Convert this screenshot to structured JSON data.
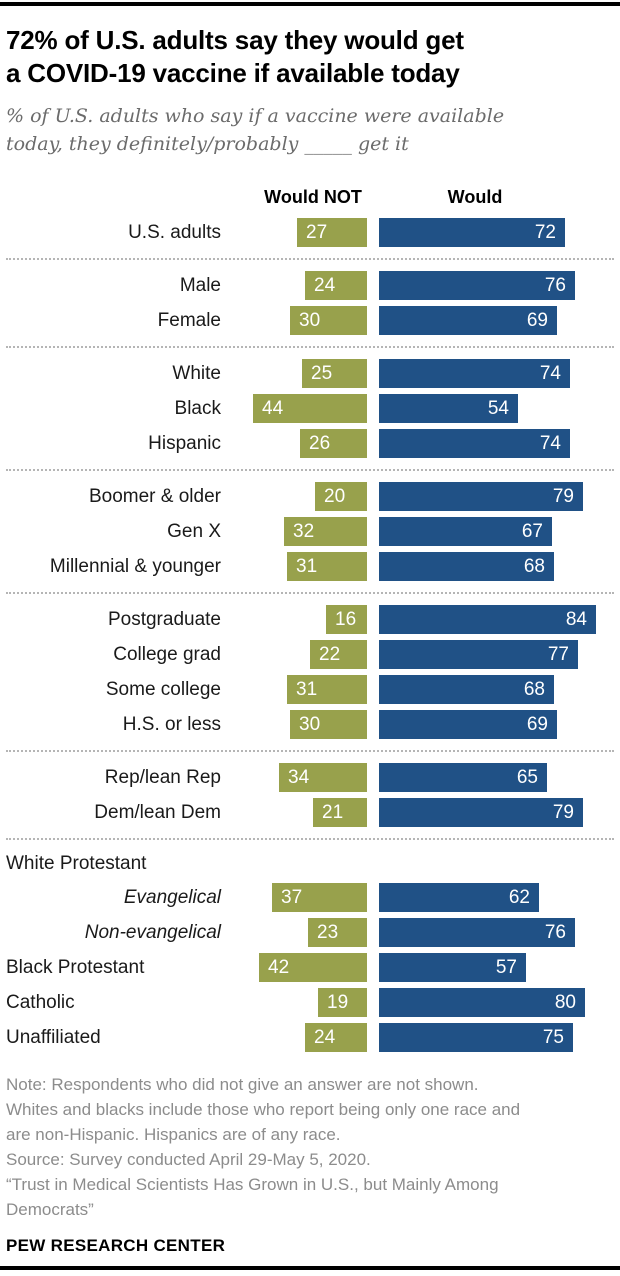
{
  "colors": {
    "would_not": "#98a14c",
    "would": "#205186",
    "divider": "#b5b5b5",
    "title_text": "#000000",
    "subtitle_text": "#6b6b6b",
    "note_text": "#8c8c8c",
    "bar_value_text": "#ffffff"
  },
  "header": {
    "title_lines": [
      "72% of U.S. adults say they would get",
      "a COVID-19 vaccine if available today"
    ],
    "subtitle_lines": [
      "% of U.S. adults who say if a vaccine were available",
      "today, they definitely/probably _____ get it"
    ]
  },
  "chart_data": {
    "type": "bar",
    "orientation": "horizontal-diverging",
    "unit": "%",
    "legend": {
      "negative": "Would NOT",
      "positive": "Would"
    },
    "x_range_negative_max": 44,
    "x_range_positive_max": 84,
    "groups": [
      {
        "rows": [
          {
            "label": "U.S. adults",
            "would_not": 27,
            "would": 72
          }
        ]
      },
      {
        "rows": [
          {
            "label": "Male",
            "would_not": 24,
            "would": 76
          },
          {
            "label": "Female",
            "would_not": 30,
            "would": 69
          }
        ]
      },
      {
        "rows": [
          {
            "label": "White",
            "would_not": 25,
            "would": 74
          },
          {
            "label": "Black",
            "would_not": 44,
            "would": 54
          },
          {
            "label": "Hispanic",
            "would_not": 26,
            "would": 74
          }
        ]
      },
      {
        "rows": [
          {
            "label": "Boomer & older",
            "would_not": 20,
            "would": 79
          },
          {
            "label": "Gen X",
            "would_not": 32,
            "would": 67
          },
          {
            "label": "Millennial & younger",
            "would_not": 31,
            "would": 68
          }
        ]
      },
      {
        "rows": [
          {
            "label": "Postgraduate",
            "would_not": 16,
            "would": 84
          },
          {
            "label": "College grad",
            "would_not": 22,
            "would": 77
          },
          {
            "label": "Some college",
            "would_not": 31,
            "would": 68
          },
          {
            "label": "H.S. or less",
            "would_not": 30,
            "would": 69
          }
        ]
      },
      {
        "rows": [
          {
            "label": "Rep/lean Rep",
            "would_not": 34,
            "would": 65
          },
          {
            "label": "Dem/lean Dem",
            "would_not": 21,
            "would": 79
          }
        ]
      },
      {
        "heading": "White Protestant",
        "rows": [
          {
            "label": "Evangelical",
            "label_style": "italic",
            "would_not": 37,
            "would": 62
          },
          {
            "label": "Non-evangelical",
            "label_style": "italic",
            "would_not": 23,
            "would": 76
          },
          {
            "label": "Black Protestant",
            "label_style": "left",
            "would_not": 42,
            "would": 57
          },
          {
            "label": "Catholic",
            "label_style": "left",
            "would_not": 19,
            "would": 80
          },
          {
            "label": "Unaffiliated",
            "label_style": "left",
            "would_not": 24,
            "would": 75
          }
        ]
      }
    ]
  },
  "footer": {
    "lines": [
      "Note: Respondents who did not give an answer are not shown.",
      "Whites and blacks include those who report being only one race and",
      "are non-Hispanic. Hispanics are of any race.",
      "Source: Survey conducted April 29-May 5, 2020.",
      "“Trust in Medical Scientists Has Grown in U.S., but Mainly Among",
      "Democrats”"
    ],
    "brand": "PEW RESEARCH CENTER"
  }
}
